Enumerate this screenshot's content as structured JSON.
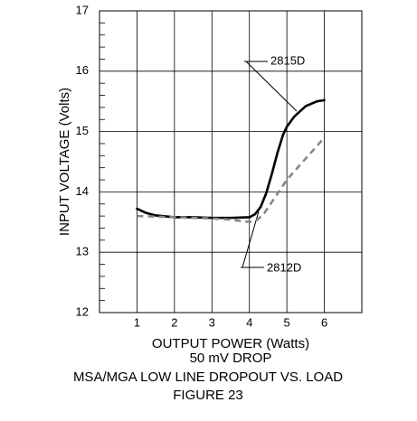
{
  "chart_data": {
    "type": "line",
    "title": "MSA/MGA LOW LINE DROPOUT VS. LOAD",
    "figure_label": "FIGURE 23",
    "x_label": "OUTPUT POWER (Watts)",
    "x_sublabel": "50 mV DROP",
    "y_label": "INPUT VOLTAGE (Volts)",
    "xlim": [
      0,
      7
    ],
    "xticks": [
      1,
      2,
      3,
      4,
      5,
      6
    ],
    "ylim": [
      12,
      17
    ],
    "yticks": [
      12,
      13,
      14,
      15,
      16,
      17
    ],
    "yminorticks": [
      12.2,
      12.4,
      12.6,
      12.8,
      13.2,
      13.4,
      13.6,
      13.8,
      14.2,
      14.4,
      14.6,
      14.8,
      15.2,
      15.4,
      15.6,
      15.8,
      16.2,
      16.4,
      16.6,
      16.8
    ],
    "grid": true,
    "series": [
      {
        "name": "2815D",
        "color": "#000000",
        "style": "solid",
        "x": [
          1,
          1.25,
          1.5,
          2,
          2.5,
          3,
          3.5,
          4,
          4.15,
          4.3,
          4.45,
          4.6,
          4.75,
          4.9,
          5,
          5.2,
          5.5,
          5.8,
          6
        ],
        "values": [
          13.72,
          13.65,
          13.61,
          13.58,
          13.58,
          13.57,
          13.57,
          13.58,
          13.63,
          13.75,
          13.98,
          14.3,
          14.65,
          14.95,
          15.08,
          15.25,
          15.42,
          15.5,
          15.52
        ]
      },
      {
        "name": "2812D",
        "color": "#888888",
        "style": "dashed",
        "x": [
          1,
          2,
          3,
          3.5,
          4,
          4.2,
          4.4,
          5,
          5.5,
          6
        ],
        "values": [
          13.6,
          13.58,
          13.56,
          13.54,
          13.5,
          13.53,
          13.65,
          14.2,
          14.55,
          14.9
        ]
      }
    ]
  }
}
